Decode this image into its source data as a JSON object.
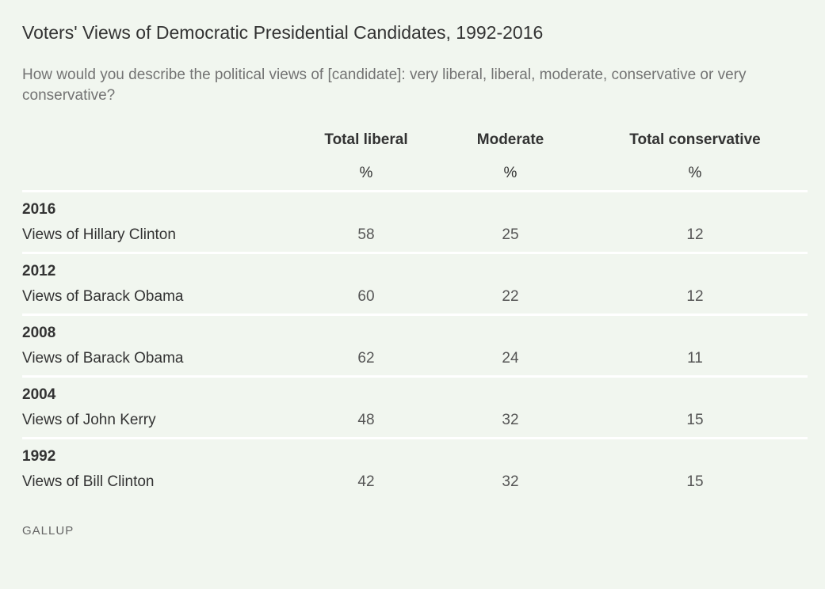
{
  "chart_data": {
    "type": "table",
    "title": "Voters' Views of Democratic Presidential Candidates, 1992-2016",
    "subtitle": "How would you describe the political views of [candidate]: very liberal, liberal, moderate, conservative or very conservative?",
    "columns": [
      {
        "label": "Total liberal",
        "unit": "%"
      },
      {
        "label": "Moderate",
        "unit": "%"
      },
      {
        "label": "Total conservative",
        "unit": "%"
      }
    ],
    "rows": [
      {
        "year": "2016",
        "label": "Views of Hillary Clinton",
        "values": [
          "58",
          "25",
          "12"
        ]
      },
      {
        "year": "2012",
        "label": "Views of Barack Obama",
        "values": [
          "60",
          "22",
          "12"
        ]
      },
      {
        "year": "2008",
        "label": "Views of Barack Obama",
        "values": [
          "62",
          "24",
          "11"
        ]
      },
      {
        "year": "2004",
        "label": "Views of John Kerry",
        "values": [
          "48",
          "32",
          "15"
        ]
      },
      {
        "year": "1992",
        "label": "Views of Bill Clinton",
        "values": [
          "42",
          "32",
          "15"
        ]
      }
    ],
    "source": "GALLUP"
  }
}
